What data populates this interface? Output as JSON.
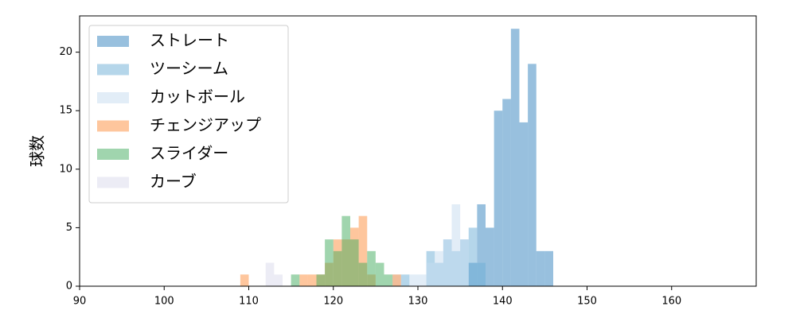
{
  "chart_data": {
    "type": "histogram",
    "ylabel": "球数",
    "xlim": [
      90,
      170
    ],
    "ylim": [
      0,
      23.1
    ],
    "xticks": [
      90,
      100,
      110,
      120,
      130,
      140,
      150,
      160
    ],
    "yticks": [
      0,
      5,
      10,
      15,
      20
    ],
    "legend": "upper left",
    "series": [
      {
        "name": "ストレート",
        "color": "#3182bd",
        "bins": [
          136,
          137,
          138,
          139,
          140,
          141,
          142,
          143,
          144,
          145,
          146
        ],
        "values": [
          2,
          7,
          5,
          15,
          16,
          22,
          14,
          19,
          3,
          3
        ]
      },
      {
        "name": "ツーシーム",
        "color": "#6baed6",
        "bins": [
          128,
          129,
          130,
          131,
          132,
          133,
          134,
          135,
          136,
          137,
          138
        ],
        "values": [
          1,
          0,
          0,
          3,
          2,
          4,
          3,
          4,
          5,
          2
        ]
      },
      {
        "name": "カットボール",
        "color": "#c6dbef",
        "bins": [
          127,
          128,
          129,
          130,
          131,
          132,
          133,
          134,
          135,
          136
        ],
        "values": [
          1,
          0,
          1,
          1,
          2,
          3,
          4,
          7,
          4
        ]
      },
      {
        "name": "チェンジアップ",
        "color": "#fd8d3c",
        "bins": [
          109,
          110,
          111,
          112,
          113,
          114,
          115,
          116,
          117,
          118,
          119,
          120,
          121,
          122,
          123,
          124,
          125,
          126,
          127,
          128
        ],
        "values": [
          1,
          0,
          0,
          0,
          0,
          0,
          0,
          1,
          1,
          1,
          2,
          4,
          4,
          5,
          6,
          1,
          0,
          0,
          1
        ]
      },
      {
        "name": "スライダー",
        "color": "#41ab5d",
        "bins": [
          115,
          116,
          117,
          118,
          119,
          120,
          121,
          122,
          123,
          124,
          125,
          126,
          127
        ],
        "values": [
          1,
          0,
          0,
          1,
          4,
          3,
          6,
          4,
          2,
          3,
          2,
          1
        ]
      },
      {
        "name": "カーブ",
        "color": "#dadaeb",
        "bins": [
          112,
          113,
          114
        ],
        "values": [
          2,
          1
        ]
      }
    ]
  }
}
